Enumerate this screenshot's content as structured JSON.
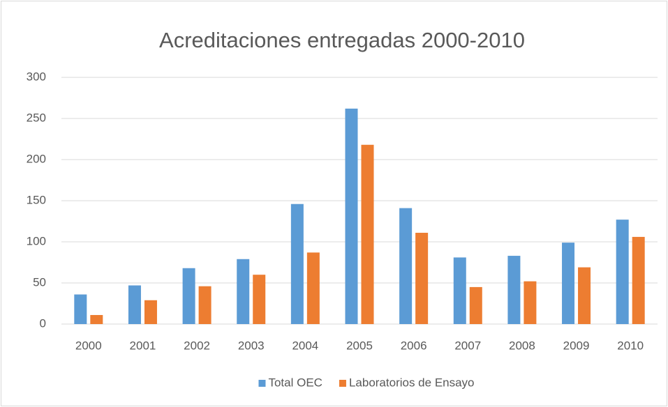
{
  "chart_data": {
    "type": "bar",
    "title": "Acreditaciones entregadas 2000-2010",
    "categories": [
      "2000",
      "2001",
      "2002",
      "2003",
      "2004",
      "2005",
      "2006",
      "2007",
      "2008",
      "2009",
      "2010"
    ],
    "series": [
      {
        "name": "Total OEC",
        "color": "#5b9bd5",
        "values": [
          36,
          47,
          68,
          79,
          146,
          262,
          141,
          81,
          83,
          99,
          127
        ]
      },
      {
        "name": "Laboratorios de Ensayo",
        "color": "#ed7d31",
        "values": [
          11,
          29,
          46,
          60,
          87,
          218,
          111,
          45,
          52,
          69,
          106
        ]
      }
    ],
    "ylim": [
      0,
      300
    ],
    "yticks": [
      0,
      50,
      100,
      150,
      200,
      250,
      300
    ],
    "grid": true,
    "legend": "bottom"
  }
}
